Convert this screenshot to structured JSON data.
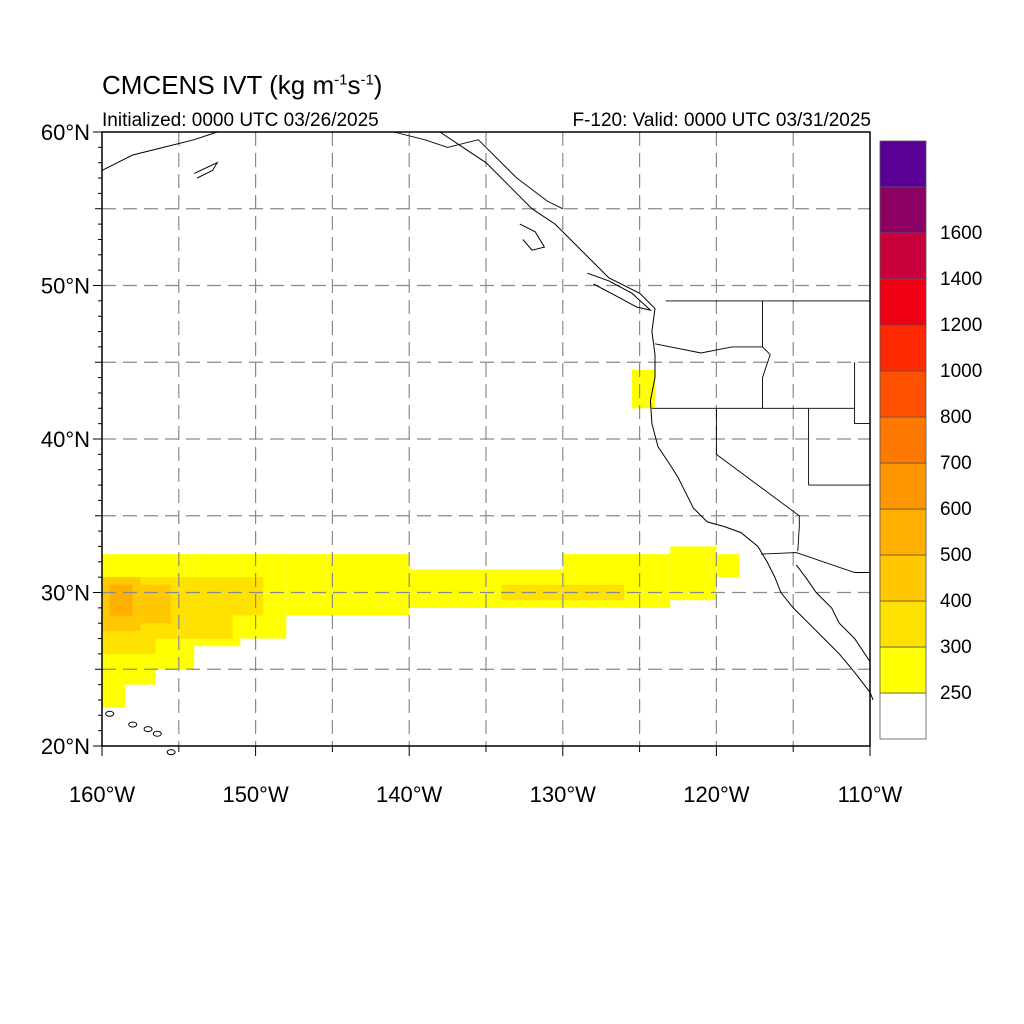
{
  "map": {
    "title_main": "CMCENS IVT (kg m",
    "title_sup1": "-1",
    "title_mid": "s",
    "title_sup2": "-1",
    "title_end": ")",
    "init_text": "Initialized: 0000 UTC 03/26/2025",
    "valid_text": "F-120: Valid: 0000 UTC 03/31/2025",
    "lat_range": [
      20,
      60
    ],
    "lon_range": [
      -160,
      -110
    ],
    "lat_labels": [
      {
        "lat": 60,
        "text": "60°N"
      },
      {
        "lat": 50,
        "text": "50°N"
      },
      {
        "lat": 40,
        "text": "40°N"
      },
      {
        "lat": 30,
        "text": "30°N"
      },
      {
        "lat": 20,
        "text": "20°N"
      }
    ],
    "lon_labels": [
      {
        "lon": -160,
        "text": "160°W"
      },
      {
        "lon": -150,
        "text": "150°W"
      },
      {
        "lon": -140,
        "text": "140°W"
      },
      {
        "lon": -130,
        "text": "130°W"
      },
      {
        "lon": -120,
        "text": "120°W"
      },
      {
        "lon": -110,
        "text": "110°W"
      }
    ],
    "grid_lats": [
      25,
      30,
      35,
      40,
      45,
      50,
      55
    ],
    "grid_lons": [
      -155,
      -150,
      -145,
      -140,
      -135,
      -130,
      -125,
      -120,
      -115
    ]
  },
  "colorbar": {
    "colors": [
      "#ffffff",
      "#ffff00",
      "#ffe100",
      "#ffc800",
      "#ffaf00",
      "#ff9600",
      "#ff7800",
      "#ff5000",
      "#ff2800",
      "#f00014",
      "#c8003c",
      "#8c0064",
      "#5a0096"
    ],
    "labels": [
      "250",
      "300",
      "400",
      "500",
      "600",
      "700",
      "800",
      "1000",
      "1200",
      "1400",
      "1600"
    ]
  },
  "ivt_cells": [
    {
      "lon": -160,
      "lat": 22.5,
      "w": 1.5,
      "h": 10,
      "level": 1
    },
    {
      "lon": -158.5,
      "lat": 24,
      "w": 2,
      "h": 8.5,
      "level": 1
    },
    {
      "lon": -156.5,
      "lat": 25,
      "w": 2.5,
      "h": 7.5,
      "level": 1
    },
    {
      "lon": -154,
      "lat": 26.5,
      "w": 3,
      "h": 6,
      "level": 1
    },
    {
      "lon": -151,
      "lat": 27,
      "w": 3,
      "h": 5.5,
      "level": 1
    },
    {
      "lon": -148,
      "lat": 28.5,
      "w": 8,
      "h": 4,
      "level": 1
    },
    {
      "lon": -140,
      "lat": 29,
      "w": 10,
      "h": 2.5,
      "level": 1
    },
    {
      "lon": -130,
      "lat": 29,
      "w": 7,
      "h": 3.5,
      "level": 1
    },
    {
      "lon": -123,
      "lat": 29.5,
      "w": 3,
      "h": 3.5,
      "level": 1
    },
    {
      "lon": -120,
      "lat": 31,
      "w": 1.5,
      "h": 1.5,
      "level": 1
    },
    {
      "lon": -125.5,
      "lat": 42,
      "w": 1.5,
      "h": 2.5,
      "level": 1
    },
    {
      "lon": -160,
      "lat": 26,
      "w": 3.5,
      "h": 5,
      "level": 2
    },
    {
      "lon": -156.5,
      "lat": 27,
      "w": 5,
      "h": 4,
      "level": 2
    },
    {
      "lon": -151.5,
      "lat": 28.5,
      "w": 2,
      "h": 2.5,
      "level": 2
    },
    {
      "lon": -134,
      "lat": 29.5,
      "w": 8,
      "h": 1,
      "level": 2
    },
    {
      "lon": -160,
      "lat": 27.5,
      "w": 2.5,
      "h": 3.5,
      "level": 3
    },
    {
      "lon": -157.5,
      "lat": 28,
      "w": 2,
      "h": 2.5,
      "level": 3
    },
    {
      "lon": -159.5,
      "lat": 28.5,
      "w": 1.5,
      "h": 2,
      "level": 4
    }
  ],
  "coastlines": [
    {
      "name": "north-america-coast",
      "points": [
        [
          -138,
          60
        ],
        [
          -136.5,
          59
        ],
        [
          -135,
          58
        ],
        [
          -133.5,
          56.5
        ],
        [
          -132,
          55
        ],
        [
          -130.5,
          54
        ],
        [
          -129.5,
          53
        ],
        [
          -128,
          51.5
        ],
        [
          -127,
          50.5
        ],
        [
          -125,
          49.5
        ],
        [
          -124,
          48.5
        ],
        [
          -124.2,
          47
        ],
        [
          -124,
          45.5
        ],
        [
          -124,
          44
        ],
        [
          -124.3,
          42.5
        ],
        [
          -124.2,
          41
        ],
        [
          -123.8,
          39.5
        ],
        [
          -123,
          38.3
        ],
        [
          -122.5,
          37.5
        ],
        [
          -122,
          36.5
        ],
        [
          -121.5,
          35.5
        ],
        [
          -120.6,
          34.6
        ],
        [
          -119.5,
          34.3
        ],
        [
          -118.4,
          33.9
        ],
        [
          -117.3,
          33
        ],
        [
          -116.7,
          32
        ],
        [
          -116.2,
          31
        ],
        [
          -115.8,
          30
        ],
        [
          -115,
          29
        ],
        [
          -114,
          28
        ],
        [
          -113,
          27
        ],
        [
          -112,
          26
        ],
        [
          -111,
          24.8
        ],
        [
          -110,
          23.5
        ],
        [
          -109.8,
          23
        ]
      ]
    },
    {
      "name": "gulf-of-california-coast",
      "points": [
        [
          -114.8,
          31.8
        ],
        [
          -114.2,
          31
        ],
        [
          -113.5,
          30
        ],
        [
          -112.5,
          29
        ],
        [
          -112,
          28
        ],
        [
          -111,
          27
        ],
        [
          -110,
          25.5
        ]
      ]
    },
    {
      "name": "alaska-peninsula",
      "points": [
        [
          -160,
          57.5
        ],
        [
          -158,
          58.5
        ],
        [
          -156,
          59
        ],
        [
          -154,
          59.5
        ],
        [
          -152.5,
          60
        ]
      ]
    },
    {
      "name": "kodiak-island",
      "points": [
        [
          -154,
          57.3
        ],
        [
          -152.5,
          58
        ],
        [
          -152.8,
          57.5
        ],
        [
          -153.8,
          57
        ]
      ]
    },
    {
      "name": "haida-gwaii",
      "points": [
        [
          -132.8,
          54
        ],
        [
          -131.8,
          53.5
        ],
        [
          -131.2,
          52.5
        ],
        [
          -132,
          52.3
        ],
        [
          -132.6,
          53
        ]
      ]
    },
    {
      "name": "vancouver-island",
      "points": [
        [
          -128.4,
          50.8
        ],
        [
          -127,
          50.3
        ],
        [
          -125.5,
          49.5
        ],
        [
          -124.3,
          48.4
        ],
        [
          -125.2,
          48.6
        ],
        [
          -126.5,
          49.3
        ],
        [
          -128,
          50.1
        ]
      ]
    }
  ],
  "borders": [
    {
      "name": "us-canada-border",
      "points": [
        [
          -123.3,
          49
        ],
        [
          -110,
          49
        ]
      ]
    },
    {
      "name": "alaska-canada-border",
      "points": [
        [
          -141,
          60
        ],
        [
          -139,
          59.5
        ],
        [
          -137.5,
          59
        ],
        [
          -135.5,
          59.5
        ],
        [
          -133,
          57
        ],
        [
          -131,
          55.5
        ],
        [
          -130,
          55
        ]
      ]
    },
    {
      "name": "washington-oregon-border",
      "points": [
        [
          -124,
          46.2
        ],
        [
          -121,
          45.6
        ],
        [
          -119,
          46
        ],
        [
          -117,
          46
        ]
      ]
    },
    {
      "name": "idaho-west-border",
      "points": [
        [
          -117,
          49
        ],
        [
          -117,
          46
        ],
        [
          -116.5,
          45.5
        ],
        [
          -117,
          44
        ],
        [
          -117,
          42
        ]
      ]
    },
    {
      "name": "oregon-california-nevada-border",
      "points": [
        [
          -124.2,
          42
        ],
        [
          -111,
          42
        ]
      ]
    },
    {
      "name": "california-nevada-border",
      "points": [
        [
          -120,
          42
        ],
        [
          -120,
          39
        ],
        [
          -114.6,
          35
        ],
        [
          -114.6,
          34.3
        ],
        [
          -114.7,
          32.7
        ]
      ]
    },
    {
      "name": "nevada-utah-border",
      "points": [
        [
          -114,
          42
        ],
        [
          -114,
          37
        ]
      ]
    },
    {
      "name": "utah-arizona-border",
      "points": [
        [
          -114,
          37
        ],
        [
          -110,
          37
        ]
      ]
    },
    {
      "name": "us-mexico-border",
      "points": [
        [
          -117.1,
          32.5
        ],
        [
          -114.8,
          32.6
        ],
        [
          -111,
          31.3
        ],
        [
          -110,
          31.3
        ]
      ]
    },
    {
      "name": "utah-east-edge",
      "points": [
        [
          -111,
          45
        ],
        [
          -111,
          41
        ],
        [
          -110,
          41
        ]
      ]
    }
  ],
  "hawaii": [
    [
      -159.5,
      22.1
    ],
    [
      -158,
      21.4
    ],
    [
      -157,
      21.1
    ],
    [
      -156.4,
      20.8
    ],
    [
      -155.5,
      19.6
    ]
  ]
}
